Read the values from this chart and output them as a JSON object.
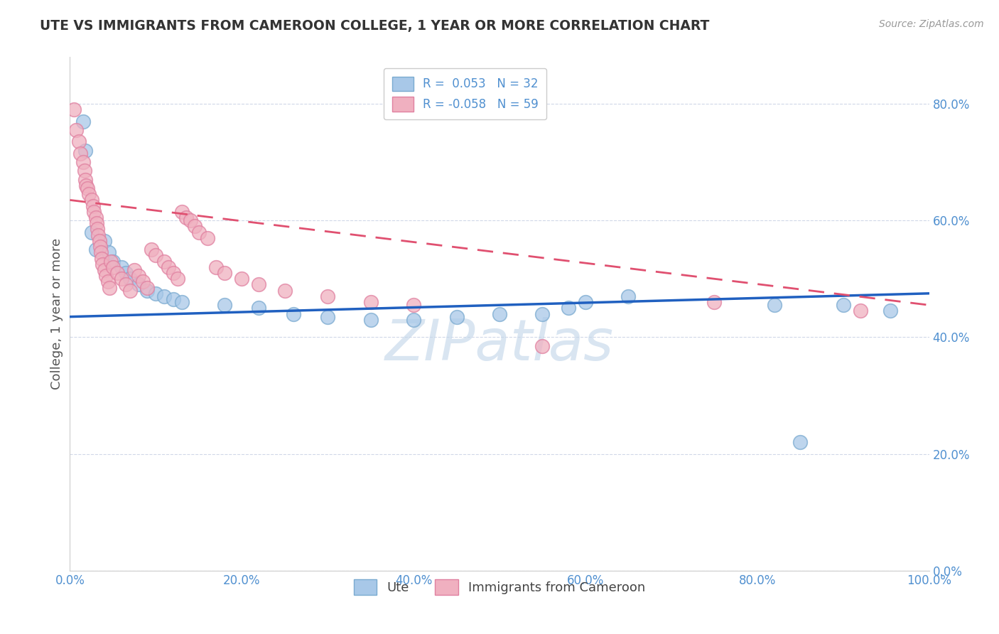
{
  "title": "UTE VS IMMIGRANTS FROM CAMEROON COLLEGE, 1 YEAR OR MORE CORRELATION CHART",
  "source": "Source: ZipAtlas.com",
  "ylabel": "College, 1 year or more",
  "legend_label1": "Ute",
  "legend_label2": "Immigrants from Cameroon",
  "R1": 0.053,
  "N1": 32,
  "R2": -0.058,
  "N2": 59,
  "blue_color": "#a8c8e8",
  "blue_edge_color": "#7aaad0",
  "pink_color": "#f0b0c0",
  "pink_edge_color": "#e080a0",
  "blue_line_color": "#2060c0",
  "pink_line_color": "#e05070",
  "blue_scatter": [
    [
      0.015,
      0.77
    ],
    [
      0.018,
      0.72
    ],
    [
      0.025,
      0.58
    ],
    [
      0.03,
      0.55
    ],
    [
      0.04,
      0.565
    ],
    [
      0.045,
      0.545
    ],
    [
      0.05,
      0.53
    ],
    [
      0.06,
      0.52
    ],
    [
      0.065,
      0.51
    ],
    [
      0.07,
      0.5
    ],
    [
      0.08,
      0.49
    ],
    [
      0.09,
      0.48
    ],
    [
      0.1,
      0.475
    ],
    [
      0.11,
      0.47
    ],
    [
      0.12,
      0.465
    ],
    [
      0.13,
      0.46
    ],
    [
      0.18,
      0.455
    ],
    [
      0.22,
      0.45
    ],
    [
      0.26,
      0.44
    ],
    [
      0.3,
      0.435
    ],
    [
      0.35,
      0.43
    ],
    [
      0.4,
      0.43
    ],
    [
      0.45,
      0.435
    ],
    [
      0.5,
      0.44
    ],
    [
      0.55,
      0.44
    ],
    [
      0.58,
      0.45
    ],
    [
      0.6,
      0.46
    ],
    [
      0.65,
      0.47
    ],
    [
      0.82,
      0.455
    ],
    [
      0.85,
      0.22
    ],
    [
      0.9,
      0.455
    ],
    [
      0.955,
      0.445
    ]
  ],
  "pink_scatter": [
    [
      0.005,
      0.79
    ],
    [
      0.007,
      0.755
    ],
    [
      0.01,
      0.735
    ],
    [
      0.012,
      0.715
    ],
    [
      0.015,
      0.7
    ],
    [
      0.017,
      0.685
    ],
    [
      0.018,
      0.67
    ],
    [
      0.019,
      0.66
    ],
    [
      0.02,
      0.655
    ],
    [
      0.022,
      0.645
    ],
    [
      0.025,
      0.635
    ],
    [
      0.027,
      0.625
    ],
    [
      0.028,
      0.615
    ],
    [
      0.03,
      0.605
    ],
    [
      0.031,
      0.595
    ],
    [
      0.032,
      0.585
    ],
    [
      0.033,
      0.575
    ],
    [
      0.034,
      0.565
    ],
    [
      0.035,
      0.555
    ],
    [
      0.036,
      0.545
    ],
    [
      0.037,
      0.535
    ],
    [
      0.038,
      0.525
    ],
    [
      0.04,
      0.515
    ],
    [
      0.042,
      0.505
    ],
    [
      0.044,
      0.495
    ],
    [
      0.046,
      0.485
    ],
    [
      0.048,
      0.53
    ],
    [
      0.05,
      0.52
    ],
    [
      0.055,
      0.51
    ],
    [
      0.06,
      0.5
    ],
    [
      0.065,
      0.49
    ],
    [
      0.07,
      0.48
    ],
    [
      0.075,
      0.515
    ],
    [
      0.08,
      0.505
    ],
    [
      0.085,
      0.495
    ],
    [
      0.09,
      0.485
    ],
    [
      0.095,
      0.55
    ],
    [
      0.1,
      0.54
    ],
    [
      0.11,
      0.53
    ],
    [
      0.115,
      0.52
    ],
    [
      0.12,
      0.51
    ],
    [
      0.125,
      0.5
    ],
    [
      0.13,
      0.615
    ],
    [
      0.135,
      0.605
    ],
    [
      0.14,
      0.6
    ],
    [
      0.145,
      0.59
    ],
    [
      0.15,
      0.58
    ],
    [
      0.16,
      0.57
    ],
    [
      0.17,
      0.52
    ],
    [
      0.18,
      0.51
    ],
    [
      0.2,
      0.5
    ],
    [
      0.22,
      0.49
    ],
    [
      0.25,
      0.48
    ],
    [
      0.3,
      0.47
    ],
    [
      0.35,
      0.46
    ],
    [
      0.4,
      0.455
    ],
    [
      0.55,
      0.385
    ],
    [
      0.75,
      0.46
    ],
    [
      0.92,
      0.445
    ]
  ],
  "xlim": [
    0,
    1.0
  ],
  "ylim": [
    0,
    0.88
  ],
  "xtick_vals": [
    0.0,
    0.2,
    0.4,
    0.6,
    0.8,
    1.0
  ],
  "xtick_labels": [
    "0.0%",
    "20.0%",
    "40.0%",
    "60.0%",
    "80.0%",
    "100.0%"
  ],
  "ytick_vals": [
    0.0,
    0.2,
    0.4,
    0.6,
    0.8
  ],
  "ytick_labels": [
    "0.0%",
    "20.0%",
    "40.0%",
    "60.0%",
    "80.0%"
  ],
  "background_color": "#ffffff",
  "grid_color": "#d0d8e8",
  "watermark": "ZIPatlas",
  "watermark_color": "#c0d4e8",
  "tick_color": "#5090d0",
  "title_color": "#333333",
  "source_color": "#999999",
  "ylabel_color": "#555555"
}
